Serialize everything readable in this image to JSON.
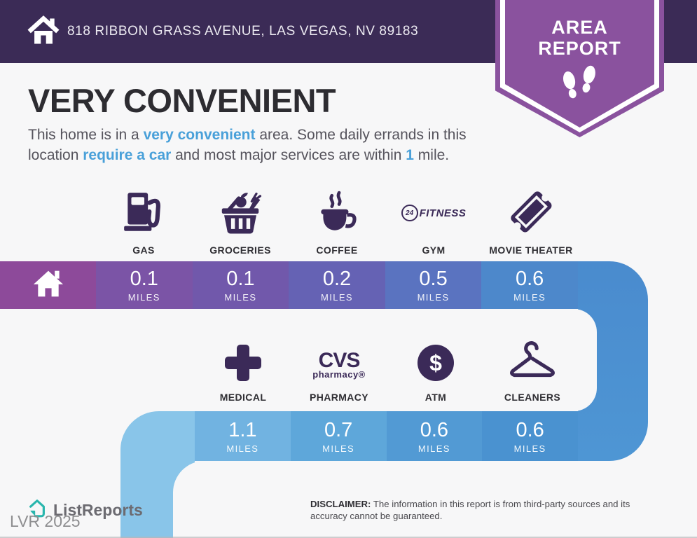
{
  "colors": {
    "page_bg": "#f7f7f8",
    "header_bg": "#3b2b56",
    "badge_purple": "#8a529e",
    "ink": "#3b2a58",
    "accent": "#49a0d9",
    "title": "#2d2c31",
    "body_text": "#55535c",
    "label_text": "#2f2e33",
    "footer_gray": "#6c6b71",
    "watermark_gray": "#8e8e90",
    "brand_teal": "#29b6ad",
    "right_turn_top": "#4a8bce",
    "right_turn_bottom": "#4e96d4",
    "hook_blue": "#89c5e9",
    "home_segment": "#8d4a9a"
  },
  "header": {
    "address": "818 RIBBON GRASS AVENUE, LAS VEGAS, NV 89183"
  },
  "badge": {
    "line1": "AREA",
    "line2": "REPORT"
  },
  "headline": {
    "title": "VERY CONVENIENT",
    "paragraph_parts": [
      {
        "text": "This home is in a ",
        "highlight": false
      },
      {
        "text": "very convenient",
        "highlight": true
      },
      {
        "text": " area. Some daily errands in this location ",
        "highlight": false
      },
      {
        "text": "require a car",
        "highlight": true
      },
      {
        "text": " and most major services are within ",
        "highlight": false
      },
      {
        "text": "1",
        "highlight": true
      },
      {
        "text": " mile.",
        "highlight": false
      }
    ]
  },
  "row1": {
    "items": [
      {
        "label": "GAS",
        "icon": "gas-pump-icon",
        "distance": "0.1",
        "unit": "MILES",
        "color": "#7b54a6"
      },
      {
        "label": "GROCERIES",
        "icon": "grocery-basket-icon",
        "distance": "0.1",
        "unit": "MILES",
        "color": "#7158ab"
      },
      {
        "label": "COFFEE",
        "icon": "coffee-cup-icon",
        "distance": "0.2",
        "unit": "MILES",
        "color": "#6562b4"
      },
      {
        "label": "GYM",
        "icon": "24-hour-fitness-logo",
        "distance": "0.5",
        "unit": "MILES",
        "color": "#5a73c0"
      },
      {
        "label": "MOVIE THEATER",
        "icon": "movie-ticket-icon",
        "distance": "0.6",
        "unit": "MILES",
        "color": "#4d88cb"
      }
    ]
  },
  "row2": {
    "items": [
      {
        "label": "MEDICAL",
        "icon": "medical-cross-icon",
        "distance": "1.1",
        "unit": "MILES",
        "color": "#71b3e1"
      },
      {
        "label": "PHARMACY",
        "icon": "cvs-pharmacy-logo",
        "distance": "0.7",
        "unit": "MILES",
        "color": "#5ea7da"
      },
      {
        "label": "ATM",
        "icon": "dollar-circle-icon",
        "distance": "0.6",
        "unit": "MILES",
        "color": "#529ad4"
      },
      {
        "label": "CLEANERS",
        "icon": "hanger-icon",
        "distance": "0.6",
        "unit": "MILES",
        "color": "#4a92d0"
      }
    ]
  },
  "logos": {
    "gym_number": "24",
    "gym_text": "FITNESS",
    "cvs_top": "CVS",
    "cvs_bottom": "pharmacy®"
  },
  "footer": {
    "brand": "ListReports",
    "watermark": "LVR 2025",
    "disclaimer_label": "DISCLAIMER:",
    "disclaimer_text": " The information in this report is from third-party sources and its accuracy cannot be guaranteed."
  }
}
